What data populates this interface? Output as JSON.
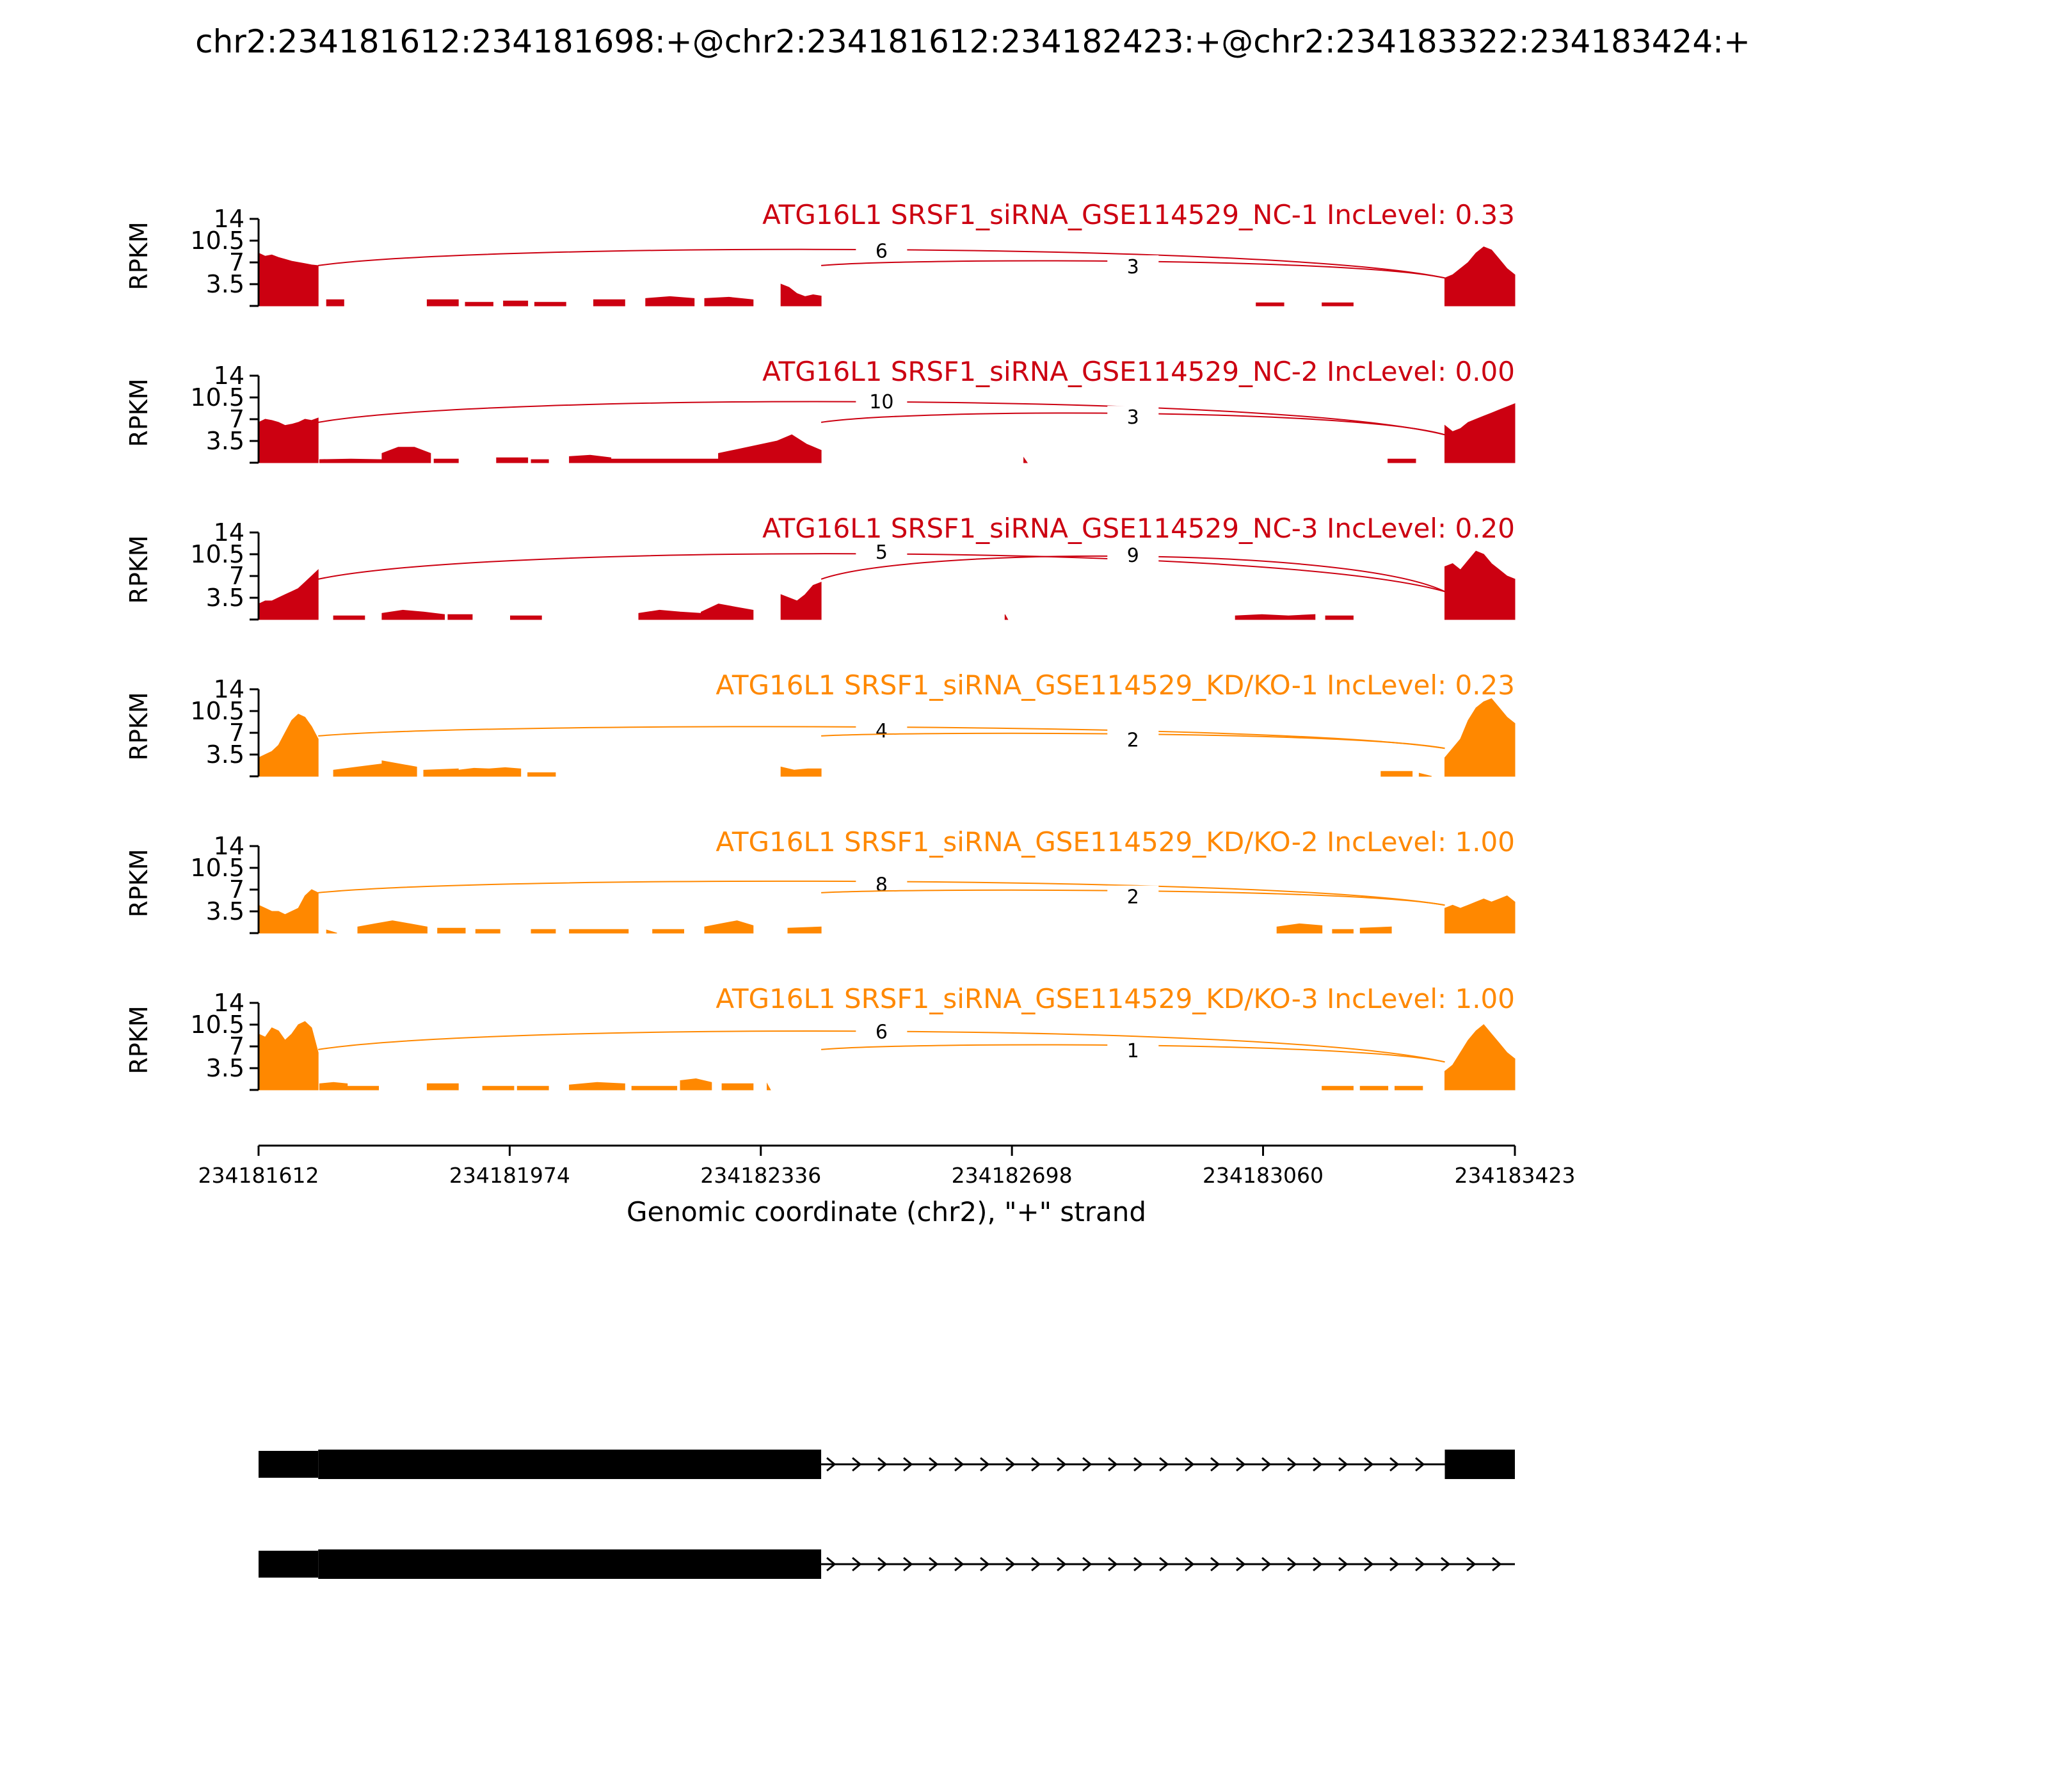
{
  "figure": {
    "title": "chr2:234181612:234181698:+@chr2:234181612:234182423:+@chr2:234183322:234183424:+",
    "colors": {
      "nc": "#cc0011",
      "kd": "#ff8800",
      "text": "#000000",
      "gene": "#000000"
    }
  },
  "chart_data": {
    "type": "sashimi",
    "xlabel": "Genomic coordinate (chr2), \"+\" strand",
    "ylabel": "RPKM",
    "xlim": [
      234181612,
      234183423
    ],
    "x_ticks": [
      {
        "value": 234181612,
        "label": "234181612"
      },
      {
        "value": 234181974,
        "label": "234181974"
      },
      {
        "value": 234182336,
        "label": "234182336"
      },
      {
        "value": 234182698,
        "label": "234182698"
      },
      {
        "value": 234183060,
        "label": "234183060"
      },
      {
        "value": 234183423,
        "label": "234183423"
      }
    ],
    "ylim": [
      0,
      14
    ],
    "y_ticks": [
      {
        "value": 3.5,
        "label": "3.5"
      },
      {
        "value": 7,
        "label": "7"
      },
      {
        "value": 10.5,
        "label": "10.5"
      },
      {
        "value": 14,
        "label": "14"
      }
    ],
    "tracks": [
      {
        "label": "ATG16L1 SRSF1_siRNA_GSE114529_NC-1 IncLevel: 0.33",
        "group": "nc",
        "junctions": [
          {
            "start": 234181698,
            "end": 234183322,
            "count": "6",
            "height": 9.0
          },
          {
            "start": 234182423,
            "end": 234183322,
            "count": "3",
            "height": 6.5
          }
        ],
        "segments": [
          {
            "start": 234181612,
            "end": 234181698,
            "values": [
              8.5,
              8,
              8.2,
              7.8,
              7.5,
              7.2,
              7,
              6.8,
              6.6,
              6.5
            ]
          },
          {
            "start": 234181710,
            "end": 234181735,
            "values": [
              1,
              1
            ]
          },
          {
            "start": 234181855,
            "end": 234181900,
            "values": [
              1,
              1
            ]
          },
          {
            "start": 234181910,
            "end": 234181950,
            "values": [
              0.6,
              0.6
            ]
          },
          {
            "start": 234181965,
            "end": 234182000,
            "values": [
              0.8,
              0.8
            ]
          },
          {
            "start": 234182010,
            "end": 234182055,
            "values": [
              0.6,
              0.6
            ]
          },
          {
            "start": 234182095,
            "end": 234182140,
            "values": [
              1,
              1
            ]
          },
          {
            "start": 234182170,
            "end": 234182240,
            "values": [
              1.2,
              1.5,
              1.2
            ]
          },
          {
            "start": 234182255,
            "end": 234182325,
            "values": [
              1.2,
              1.4,
              1
            ]
          },
          {
            "start": 234182365,
            "end": 234182423,
            "values": [
              3.5,
              3,
              2,
              1.5,
              1.8,
              1.6
            ]
          },
          {
            "start": 234183050,
            "end": 234183090,
            "values": [
              0.5,
              0.5
            ]
          },
          {
            "start": 234183145,
            "end": 234183190,
            "values": [
              0.5,
              0.5
            ]
          },
          {
            "start": 234183322,
            "end": 234183423,
            "values": [
              4.5,
              5,
              6,
              7,
              8.5,
              9.5,
              9,
              7.5,
              6,
              5
            ]
          }
        ]
      },
      {
        "label": "ATG16L1 SRSF1_siRNA_GSE114529_NC-2 IncLevel: 0.00",
        "group": "nc",
        "junctions": [
          {
            "start": 234181698,
            "end": 234183322,
            "count": "10",
            "height": 10.0
          },
          {
            "start": 234182423,
            "end": 234183322,
            "count": "3",
            "height": 7.5
          }
        ],
        "segments": [
          {
            "start": 234181612,
            "end": 234181698,
            "values": [
              6.5,
              7,
              6.8,
              6.5,
              6,
              6.2,
              6.5,
              7,
              6.8,
              7.2
            ]
          },
          {
            "start": 234181700,
            "end": 234181790,
            "values": [
              0.5,
              0.6,
              0.5
            ]
          },
          {
            "start": 234181790,
            "end": 234181860,
            "values": [
              1.5,
              2.5,
              2.5,
              1.5
            ]
          },
          {
            "start": 234181865,
            "end": 234181900,
            "values": [
              0.6,
              0.6
            ]
          },
          {
            "start": 234181955,
            "end": 234182000,
            "values": [
              0.8,
              0.8
            ]
          },
          {
            "start": 234182005,
            "end": 234182030,
            "values": [
              0.5,
              0.5
            ]
          },
          {
            "start": 234182060,
            "end": 234182120,
            "values": [
              1,
              1.2,
              0.8
            ]
          },
          {
            "start": 234182120,
            "end": 234182275,
            "values": [
              0.6,
              0.6,
              0.6,
              0.6,
              0.6,
              0.6
            ]
          },
          {
            "start": 234182275,
            "end": 234182423,
            "values": [
              1.5,
              2,
              2.5,
              3,
              3.5,
              4.5,
              3,
              2
            ]
          },
          {
            "start": 234182715,
            "end": 234182720,
            "values": [
              0.8
            ]
          },
          {
            "start": 234183240,
            "end": 234183280,
            "values": [
              0.6,
              0.6
            ]
          },
          {
            "start": 234183322,
            "end": 234183423,
            "values": [
              6,
              5,
              5.5,
              6.5,
              7,
              7.5,
              8,
              8.5,
              9,
              9.5
            ]
          }
        ]
      },
      {
        "label": "ATG16L1 SRSF1_siRNA_GSE114529_NC-3 IncLevel: 0.20",
        "group": "nc",
        "junctions": [
          {
            "start": 234181698,
            "end": 234183322,
            "count": "5",
            "height": 11.0
          },
          {
            "start": 234182423,
            "end": 234183322,
            "count": "9",
            "height": 10.5
          }
        ],
        "segments": [
          {
            "start": 234181612,
            "end": 234181698,
            "values": [
              2.5,
              3,
              3,
              3.5,
              4,
              4.5,
              5,
              6,
              7,
              8
            ]
          },
          {
            "start": 234181720,
            "end": 234181765,
            "values": [
              0.6,
              0.6
            ]
          },
          {
            "start": 234181790,
            "end": 234181880,
            "values": [
              1,
              1.5,
              1.2,
              0.8
            ]
          },
          {
            "start": 234181885,
            "end": 234181920,
            "values": [
              0.8,
              0.8
            ]
          },
          {
            "start": 234181975,
            "end": 234182020,
            "values": [
              0.6,
              0.6
            ]
          },
          {
            "start": 234182160,
            "end": 234182250,
            "values": [
              1,
              1.5,
              1.2,
              1
            ]
          },
          {
            "start": 234182250,
            "end": 234182325,
            "values": [
              1.2,
              2.5,
              2,
              1.5
            ]
          },
          {
            "start": 234182365,
            "end": 234182423,
            "values": [
              4,
              3.5,
              3,
              4,
              5.5,
              6
            ]
          },
          {
            "start": 234182688,
            "end": 234182692,
            "values": [
              0.8
            ]
          },
          {
            "start": 234183020,
            "end": 234183135,
            "values": [
              0.6,
              0.8,
              0.6,
              0.8
            ]
          },
          {
            "start": 234183150,
            "end": 234183190,
            "values": [
              0.6,
              0.6
            ]
          },
          {
            "start": 234183322,
            "end": 234183423,
            "values": [
              8.5,
              9,
              8,
              9.5,
              11,
              10.5,
              9,
              8,
              7,
              6.5
            ]
          }
        ]
      },
      {
        "label": "ATG16L1 SRSF1_siRNA_GSE114529_KD/KO-1 IncLevel: 0.23",
        "group": "kd",
        "junctions": [
          {
            "start": 234181698,
            "end": 234183322,
            "count": "4",
            "height": 7.5
          },
          {
            "start": 234182423,
            "end": 234183322,
            "count": "2",
            "height": 6.0
          }
        ],
        "segments": [
          {
            "start": 234181612,
            "end": 234181698,
            "values": [
              3,
              3.5,
              4,
              5,
              7,
              9,
              10,
              9.5,
              8,
              6
            ]
          },
          {
            "start": 234181720,
            "end": 234181790,
            "values": [
              1,
              1.5,
              2
            ]
          },
          {
            "start": 234181790,
            "end": 234181840,
            "values": [
              2.5,
              2,
              1.5
            ]
          },
          {
            "start": 234181850,
            "end": 234181900,
            "values": [
              1,
              1.2
            ]
          },
          {
            "start": 234181900,
            "end": 234181990,
            "values": [
              1,
              1.3,
              1.2,
              1.4,
              1.2
            ]
          },
          {
            "start": 234182000,
            "end": 234182040,
            "values": [
              0.6,
              0.6
            ]
          },
          {
            "start": 234182365,
            "end": 234182423,
            "values": [
              1.5,
              1,
              1.2,
              1.2
            ]
          },
          {
            "start": 234183230,
            "end": 234183275,
            "values": [
              0.8,
              0.8
            ]
          },
          {
            "start": 234183285,
            "end": 234183303,
            "values": [
              0.5
            ]
          },
          {
            "start": 234183322,
            "end": 234183423,
            "values": [
              3,
              4.5,
              6,
              9,
              11,
              12,
              12.5,
              11,
              9.5,
              8.5
            ]
          }
        ]
      },
      {
        "label": "ATG16L1 SRSF1_siRNA_GSE114529_KD/KO-2 IncLevel: 1.00",
        "group": "kd",
        "junctions": [
          {
            "start": 234181698,
            "end": 234183322,
            "count": "8",
            "height": 8.0
          },
          {
            "start": 234182423,
            "end": 234183322,
            "count": "2",
            "height": 6.0
          }
        ],
        "segments": [
          {
            "start": 234181612,
            "end": 234181698,
            "values": [
              4.5,
              4,
              3.5,
              3.5,
              3,
              3.5,
              4,
              6,
              7,
              6.5
            ]
          },
          {
            "start": 234181710,
            "end": 234181725,
            "values": [
              0.5
            ]
          },
          {
            "start": 234181755,
            "end": 234181855,
            "values": [
              1,
              1.5,
              2,
              1.5,
              1
            ]
          },
          {
            "start": 234181870,
            "end": 234181910,
            "values": [
              0.8,
              0.8
            ]
          },
          {
            "start": 234181925,
            "end": 234181960,
            "values": [
              0.6,
              0.6
            ]
          },
          {
            "start": 234182005,
            "end": 234182040,
            "values": [
              0.6,
              0.6
            ]
          },
          {
            "start": 234182060,
            "end": 234182145,
            "values": [
              0.6,
              0.6,
              0.6
            ]
          },
          {
            "start": 234182180,
            "end": 234182225,
            "values": [
              0.6,
              0.6
            ]
          },
          {
            "start": 234182255,
            "end": 234182325,
            "values": [
              1,
              1.5,
              2,
              1.2
            ]
          },
          {
            "start": 234182375,
            "end": 234182423,
            "values": [
              0.8,
              1
            ]
          },
          {
            "start": 234183080,
            "end": 234183145,
            "values": [
              1,
              1.5,
              1.2
            ]
          },
          {
            "start": 234183160,
            "end": 234183190,
            "values": [
              0.6,
              0.6
            ]
          },
          {
            "start": 234183200,
            "end": 234183245,
            "values": [
              0.8,
              1
            ]
          },
          {
            "start": 234183322,
            "end": 234183423,
            "values": [
              4,
              4.5,
              4,
              4.5,
              5,
              5.5,
              5,
              5.5,
              6,
              5
            ]
          }
        ]
      },
      {
        "label": "ATG16L1 SRSF1_siRNA_GSE114529_KD/KO-3 IncLevel: 1.00",
        "group": "kd",
        "junctions": [
          {
            "start": 234181698,
            "end": 234183322,
            "count": "6",
            "height": 9.5
          },
          {
            "start": 234182423,
            "end": 234183322,
            "count": "1",
            "height": 6.5
          }
        ],
        "segments": [
          {
            "start": 234181612,
            "end": 234181698,
            "values": [
              9,
              8.5,
              10,
              9.5,
              8,
              9,
              10.5,
              11,
              10,
              6
            ]
          },
          {
            "start": 234181700,
            "end": 234181740,
            "values": [
              1,
              1.2,
              1
            ]
          },
          {
            "start": 234181740,
            "end": 234181785,
            "values": [
              0.6,
              0.6
            ]
          },
          {
            "start": 234181855,
            "end": 234181900,
            "values": [
              1,
              1
            ]
          },
          {
            "start": 234181935,
            "end": 234181980,
            "values": [
              0.6,
              0.6
            ]
          },
          {
            "start": 234181985,
            "end": 234182030,
            "values": [
              0.6,
              0.6
            ]
          },
          {
            "start": 234182060,
            "end": 234182140,
            "values": [
              0.8,
              1.2,
              1
            ]
          },
          {
            "start": 234182150,
            "end": 234182215,
            "values": [
              0.6,
              0.6,
              0.6
            ]
          },
          {
            "start": 234182220,
            "end": 234182265,
            "values": [
              1.5,
              1.8,
              1.2
            ]
          },
          {
            "start": 234182280,
            "end": 234182325,
            "values": [
              1,
              1
            ]
          },
          {
            "start": 234182345,
            "end": 234182350,
            "values": [
              1
            ]
          },
          {
            "start": 234183145,
            "end": 234183190,
            "values": [
              0.6,
              0.6
            ]
          },
          {
            "start": 234183200,
            "end": 234183240,
            "values": [
              0.6,
              0.6
            ]
          },
          {
            "start": 234183250,
            "end": 234183290,
            "values": [
              0.6,
              0.6
            ]
          },
          {
            "start": 234183322,
            "end": 234183423,
            "values": [
              3,
              4,
              6,
              8,
              9.5,
              10.5,
              9,
              7.5,
              6,
              5
            ]
          }
        ]
      }
    ],
    "gene_models": [
      {
        "exons": [
          {
            "start": 234181612,
            "end": 234181698,
            "thick": false
          },
          {
            "start": 234181698,
            "end": 234182423,
            "thick": true
          },
          {
            "start": 234183322,
            "end": 234183423,
            "thick": true
          }
        ],
        "line_end": 234183322
      },
      {
        "exons": [
          {
            "start": 234181612,
            "end": 234181698,
            "thick": false
          },
          {
            "start": 234181698,
            "end": 234182423,
            "thick": true
          }
        ],
        "line_end": 234183423
      }
    ]
  }
}
